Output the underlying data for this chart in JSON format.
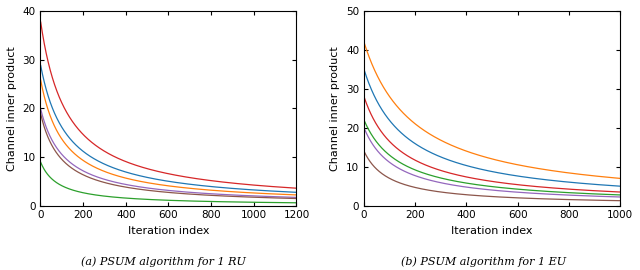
{
  "subplot1": {
    "xlabel": "Iteration index",
    "ylabel": "Channel inner product",
    "xlim": [
      0,
      1200
    ],
    "ylim": [
      0,
      40
    ],
    "yticks": [
      0,
      10,
      20,
      30,
      40
    ],
    "xticks": [
      0,
      200,
      400,
      600,
      800,
      1000,
      1200
    ],
    "curves": [
      {
        "start": 38.0,
        "k": 0.008,
        "color": "#d62728"
      },
      {
        "start": 29.0,
        "k": 0.008,
        "color": "#1f77b4"
      },
      {
        "start": 26.0,
        "k": 0.009,
        "color": "#ff7f0e"
      },
      {
        "start": 20.0,
        "k": 0.009,
        "color": "#9467bd"
      },
      {
        "start": 19.0,
        "k": 0.01,
        "color": "#8c564b"
      },
      {
        "start": 9.0,
        "k": 0.012,
        "color": "#2ca02c"
      }
    ],
    "caption": "(a) PSUM algorithm for 1 RU"
  },
  "subplot2": {
    "xlabel": "Iteration index",
    "ylabel": "Channel inner product",
    "xlim": [
      0,
      1000
    ],
    "ylim": [
      0,
      50
    ],
    "yticks": [
      0,
      10,
      20,
      30,
      40,
      50
    ],
    "xticks": [
      0,
      200,
      400,
      600,
      800,
      1000
    ],
    "curves": [
      {
        "start": 42.0,
        "k": 0.005,
        "color": "#ff7f0e"
      },
      {
        "start": 35.0,
        "k": 0.006,
        "color": "#1f77b4"
      },
      {
        "start": 28.0,
        "k": 0.007,
        "color": "#d62728"
      },
      {
        "start": 22.0,
        "k": 0.007,
        "color": "#2ca02c"
      },
      {
        "start": 20.0,
        "k": 0.008,
        "color": "#9467bd"
      },
      {
        "start": 14.0,
        "k": 0.01,
        "color": "#8c564b"
      }
    ],
    "caption": "(b) PSUM algorithm for 1 EU"
  },
  "figure_width": 6.4,
  "figure_height": 2.7,
  "dpi": 100,
  "caption_fontsize": 8.0,
  "label_fontsize": 8.0,
  "tick_fontsize": 7.5
}
